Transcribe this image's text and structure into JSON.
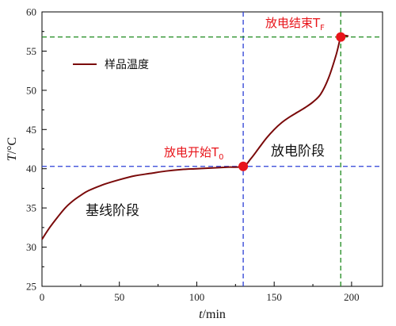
{
  "chart_data": {
    "type": "line",
    "xlabel": "t/min",
    "xlabel_italic": "t",
    "xlabel_unit": "/min",
    "ylabel": "T/°C",
    "ylabel_italic": "T",
    "ylabel_unit": "/°C",
    "xlim": [
      0,
      220
    ],
    "ylim": [
      25,
      60
    ],
    "xticks": [
      0,
      50,
      100,
      150,
      200
    ],
    "yticks": [
      25,
      30,
      35,
      40,
      45,
      50,
      55,
      60
    ],
    "grid": false,
    "legend": {
      "placement": "top-left",
      "entries": [
        "样品温度"
      ]
    },
    "colors": {
      "series": "#7a0a0a",
      "marker": "#e8141a",
      "blue_dash": "#2b3fd6",
      "green_dash": "#1d8a1d",
      "label": "#e8141a"
    },
    "series": [
      {
        "name": "样品温度",
        "x": [
          0,
          5,
          10,
          15,
          20,
          25,
          30,
          40,
          50,
          60,
          70,
          80,
          90,
          100,
          110,
          120,
          130,
          135,
          140,
          145,
          150,
          155,
          160,
          165,
          170,
          175,
          180,
          185,
          190,
          193,
          195,
          198
        ],
        "y": [
          31.0,
          32.5,
          33.8,
          35.0,
          35.9,
          36.6,
          37.2,
          38.0,
          38.6,
          39.1,
          39.4,
          39.7,
          39.9,
          40.0,
          40.1,
          40.2,
          40.3,
          41.3,
          42.6,
          43.9,
          45.0,
          45.9,
          46.6,
          47.2,
          47.8,
          48.5,
          49.5,
          51.5,
          54.5,
          56.8,
          57.0,
          56.9
        ]
      }
    ],
    "reference_lines": [
      {
        "orientation": "horizontal",
        "y": 40.3,
        "color": "blue"
      },
      {
        "orientation": "vertical",
        "x": 130,
        "color": "blue"
      },
      {
        "orientation": "horizontal",
        "y": 56.8,
        "color": "green"
      },
      {
        "orientation": "vertical",
        "x": 193,
        "color": "green"
      }
    ],
    "markers": [
      {
        "x": 130,
        "y": 40.3,
        "label_main": "放电开始T",
        "label_sub": "0"
      },
      {
        "x": 193,
        "y": 56.8,
        "label_main": "放电结束T",
        "label_sub": "F"
      }
    ],
    "annotations": [
      {
        "text": "基线阶段",
        "x": 28,
        "y": 34.5
      },
      {
        "text": "放电阶段",
        "x": 138,
        "y": 41.7
      }
    ]
  }
}
